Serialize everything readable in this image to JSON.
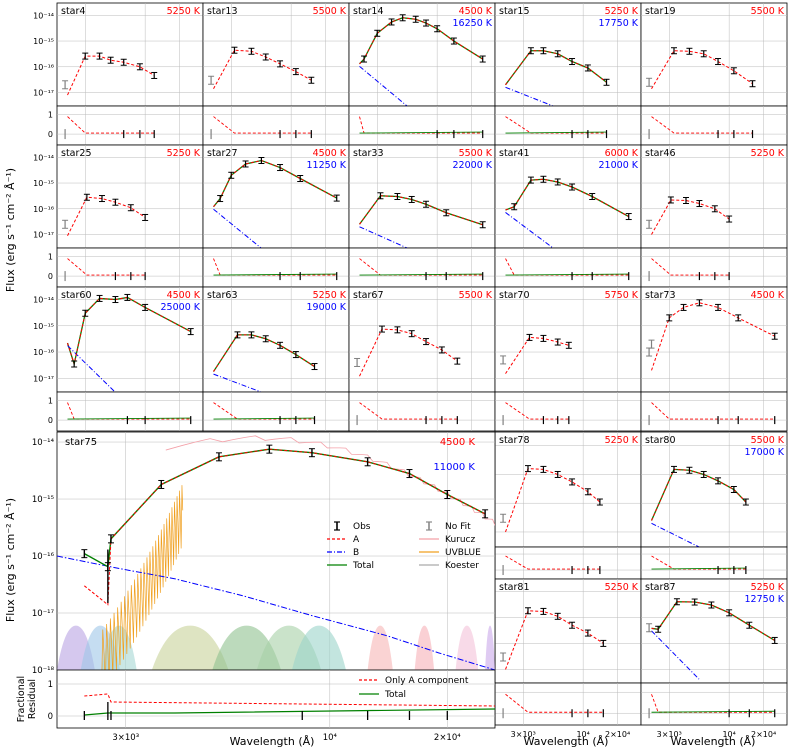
{
  "figure": {
    "ylabel_small": "Flux (erg s⁻¹ cm⁻² Å⁻¹)",
    "ylabel_big": "Flux (erg s⁻¹ cm⁻² Å⁻¹)",
    "ylabel_resid": "Fractional\nResidual",
    "xlabel": "Wavelength (Å)",
    "colors": {
      "A": "#ff0000",
      "B": "#0000ff",
      "Total": "#008000",
      "Obs": "#000000",
      "NoFit": "#808080"
    }
  },
  "legend_main": [
    {
      "label": "Obs",
      "style": "errbar"
    },
    {
      "label": "A",
      "style": "dashed-red"
    },
    {
      "label": "B",
      "style": "dashdot-blue"
    },
    {
      "label": "Total",
      "style": "solid-green"
    },
    {
      "label": "No Fit",
      "style": "errbar-gray"
    },
    {
      "label": "Kurucz",
      "style": "line-pink"
    },
    {
      "label": "UVBLUE",
      "style": "line-orange"
    },
    {
      "label": "Koester",
      "style": "line-gray"
    }
  ],
  "legend_resid": [
    {
      "label": "Only A component",
      "style": "dashed-red"
    },
    {
      "label": "Total",
      "style": "solid-green"
    }
  ],
  "chart_data": [
    {
      "type": "line",
      "star": "star4",
      "tempA": "5250 K",
      "tempB": "",
      "shape": [
        [
          2100,
          8e-18
        ],
        [
          3000,
          2.6e-16
        ],
        [
          4000,
          2.6e-16
        ],
        [
          5000,
          1.8e-16
        ],
        [
          6500,
          1.5e-16
        ],
        [
          9000,
          1e-16
        ],
        [
          12000,
          4.6e-17
        ]
      ],
      "nofit": [
        [
          2000,
          2e-17
        ]
      ]
    },
    {
      "type": "line",
      "star": "star13",
      "tempA": "5500 K",
      "tempB": "",
      "shape": [
        [
          2100,
          1.4e-17
        ],
        [
          3200,
          4.4e-16
        ],
        [
          4500,
          4e-16
        ],
        [
          6000,
          2.4e-16
        ],
        [
          8000,
          1.3e-16
        ],
        [
          11000,
          6.5e-17
        ],
        [
          15000,
          3e-17
        ]
      ],
      "nofit": [
        [
          2000,
          3e-17
        ]
      ]
    },
    {
      "type": "line",
      "star": "star14",
      "tempA": "4500 K",
      "tempB": "16250 K",
      "shape": [
        [
          2100,
          1.3e-16
        ],
        [
          2300,
          2e-16
        ],
        [
          3000,
          2e-15
        ],
        [
          4000,
          5.5e-15
        ],
        [
          5000,
          8e-15
        ],
        [
          6500,
          7e-15
        ],
        [
          8000,
          5e-15
        ],
        [
          10000,
          3e-15
        ],
        [
          14000,
          1e-15
        ],
        [
          25000,
          2e-16
        ]
      ],
      "nofit": []
    },
    {
      "type": "line",
      "star": "star15",
      "tempA": "5250 K",
      "tempB": "17750 K",
      "shape": [
        [
          2100,
          2e-17
        ],
        [
          3500,
          4.2e-16
        ],
        [
          4500,
          4.2e-16
        ],
        [
          6000,
          3.2e-16
        ],
        [
          8000,
          1.6e-16
        ],
        [
          11000,
          9e-17
        ],
        [
          16000,
          2.5e-17
        ]
      ],
      "nofit": []
    },
    {
      "type": "line",
      "star": "star19",
      "tempA": "5500 K",
      "tempB": "",
      "shape": [
        [
          2100,
          1.4e-17
        ],
        [
          3300,
          4.2e-16
        ],
        [
          4500,
          4e-16
        ],
        [
          6000,
          3.2e-16
        ],
        [
          8000,
          1.6e-16
        ],
        [
          11000,
          7e-17
        ],
        [
          16000,
          2.2e-17
        ]
      ],
      "nofit": [
        [
          2000,
          2.5e-17
        ]
      ]
    },
    {
      "type": "line",
      "star": "star25",
      "tempA": "5250 K",
      "tempB": "",
      "shape": [
        [
          2100,
          9e-18
        ],
        [
          3100,
          2.8e-16
        ],
        [
          4200,
          2.5e-16
        ],
        [
          5500,
          1.8e-16
        ],
        [
          7500,
          1.1e-16
        ],
        [
          10000,
          4.6e-17
        ]
      ],
      "nofit": [
        [
          2000,
          2.5e-17
        ]
      ]
    },
    {
      "type": "line",
      "star": "star27",
      "tempA": "4500 K",
      "tempB": "11250 K",
      "shape": [
        [
          2100,
          1.2e-16
        ],
        [
          2400,
          2.5e-16
        ],
        [
          3000,
          2e-15
        ],
        [
          4000,
          5.5e-15
        ],
        [
          5500,
          7.5e-15
        ],
        [
          8000,
          4e-15
        ],
        [
          12000,
          1.5e-15
        ],
        [
          25000,
          2.6e-16
        ]
      ],
      "nofit": []
    },
    {
      "type": "line",
      "star": "star33",
      "tempA": "5500 K",
      "tempB": "22000 K",
      "shape": [
        [
          2100,
          2.5e-17
        ],
        [
          3200,
          3.2e-16
        ],
        [
          4500,
          3e-16
        ],
        [
          6000,
          2.3e-16
        ],
        [
          8000,
          1.5e-16
        ],
        [
          12000,
          7e-17
        ],
        [
          25000,
          2.4e-17
        ]
      ],
      "nofit": []
    },
    {
      "type": "line",
      "star": "star41",
      "tempA": "6000 K",
      "tempB": "21000 K",
      "shape": [
        [
          2100,
          9e-17
        ],
        [
          2500,
          1.2e-16
        ],
        [
          3500,
          1.3e-15
        ],
        [
          4500,
          1.4e-15
        ],
        [
          6000,
          1.1e-15
        ],
        [
          8000,
          7e-16
        ],
        [
          12000,
          3e-16
        ],
        [
          25000,
          5e-17
        ]
      ],
      "nofit": []
    },
    {
      "type": "line",
      "star": "star46",
      "tempA": "5250 K",
      "tempB": "",
      "shape": [
        [
          2100,
          1e-17
        ],
        [
          3100,
          2.2e-16
        ],
        [
          4200,
          2.1e-16
        ],
        [
          5500,
          1.6e-16
        ],
        [
          7500,
          1e-16
        ],
        [
          10000,
          4e-17
        ]
      ],
      "nofit": [
        [
          2000,
          2.5e-17
        ]
      ]
    },
    {
      "type": "line",
      "star": "star60",
      "tempA": "4500 K",
      "tempB": "25000 K",
      "shape": [
        [
          2100,
          2.2e-16
        ],
        [
          2400,
          3.5e-17
        ],
        [
          3000,
          3e-15
        ],
        [
          4000,
          1.1e-14
        ],
        [
          5500,
          1e-14
        ],
        [
          7000,
          1.2e-14
        ],
        [
          10000,
          5e-15
        ],
        [
          25000,
          6e-16
        ]
      ],
      "nofit": []
    },
    {
      "type": "line",
      "star": "star63",
      "tempA": "5250 K",
      "tempB": "19000 K",
      "shape": [
        [
          2100,
          1.8e-17
        ],
        [
          3400,
          4.5e-16
        ],
        [
          4500,
          4.5e-16
        ],
        [
          6000,
          3.2e-16
        ],
        [
          8000,
          1.8e-16
        ],
        [
          11000,
          8e-17
        ],
        [
          16000,
          2.8e-17
        ]
      ],
      "nofit": []
    },
    {
      "type": "line",
      "star": "star67",
      "tempA": "5500 K",
      "tempB": "",
      "shape": [
        [
          2100,
          1.2e-17
        ],
        [
          3300,
          7.5e-16
        ],
        [
          4500,
          7e-16
        ],
        [
          6000,
          5e-16
        ],
        [
          8000,
          2.5e-16
        ],
        [
          11000,
          1.2e-16
        ],
        [
          15000,
          4.5e-17
        ]
      ],
      "nofit": [
        [
          2000,
          4e-17
        ]
      ]
    },
    {
      "type": "line",
      "star": "star70",
      "tempA": "5750 K",
      "tempB": "",
      "shape": [
        [
          2100,
          1.5e-17
        ],
        [
          3400,
          3.6e-16
        ],
        [
          4500,
          3.3e-16
        ],
        [
          6000,
          2.4e-16
        ],
        [
          7500,
          1.8e-16
        ]
      ],
      "nofit": [
        [
          2000,
          5e-17
        ]
      ]
    },
    {
      "type": "line",
      "star": "star73",
      "tempA": "4500 K",
      "tempB": "",
      "shape": [
        [
          2100,
          2e-17
        ],
        [
          3000,
          2e-15
        ],
        [
          4000,
          5e-15
        ],
        [
          5500,
          7.5e-15
        ],
        [
          8000,
          5e-15
        ],
        [
          12000,
          2e-15
        ],
        [
          25000,
          4e-16
        ]
      ],
      "nofit": [
        [
          2000,
          1e-16
        ],
        [
          2100,
          2e-16
        ]
      ]
    },
    {
      "type": "line",
      "star": "star75",
      "tempA": "4500 K",
      "tempB": "11000 K",
      "shape": [
        [
          2350,
          1.1e-16
        ],
        [
          2700,
          6.5e-17
        ],
        [
          2750,
          2e-16
        ],
        [
          3700,
          1.8e-15
        ],
        [
          5200,
          5.5e-15
        ],
        [
          7000,
          7.5e-15
        ],
        [
          9000,
          6.5e-15
        ],
        [
          12500,
          4.5e-15
        ],
        [
          16000,
          2.8e-15
        ],
        [
          20000,
          1.2e-15
        ],
        [
          25000,
          5.5e-16
        ]
      ],
      "nofit": []
    },
    {
      "type": "line",
      "star": "star78",
      "tempA": "5250 K",
      "tempB": "",
      "shape": [
        [
          2100,
          1e-17
        ],
        [
          3300,
          1.6e-15
        ],
        [
          4500,
          1.5e-15
        ],
        [
          6000,
          1e-15
        ],
        [
          8000,
          5.5e-16
        ],
        [
          11000,
          2.5e-16
        ],
        [
          14000,
          1.1e-16
        ]
      ],
      "nofit": [
        [
          2000,
          3e-17
        ]
      ]
    },
    {
      "type": "line",
      "star": "star80",
      "tempA": "5500 K",
      "tempB": "17000 K",
      "shape": [
        [
          2100,
          2.5e-17
        ],
        [
          3300,
          1.5e-15
        ],
        [
          4500,
          1.4e-15
        ],
        [
          6000,
          1e-15
        ],
        [
          8000,
          6e-16
        ],
        [
          11000,
          3e-16
        ],
        [
          14000,
          1.1e-16
        ]
      ],
      "nofit": []
    },
    {
      "type": "line",
      "star": "star81",
      "tempA": "5250 K",
      "tempB": "",
      "shape": [
        [
          2100,
          1e-17
        ],
        [
          3300,
          1.8e-15
        ],
        [
          4500,
          1.7e-15
        ],
        [
          6000,
          1.1e-15
        ],
        [
          8000,
          5e-16
        ],
        [
          11000,
          2.5e-16
        ],
        [
          15000,
          1e-16
        ]
      ],
      "nofit": [
        [
          2000,
          3e-17
        ]
      ]
    },
    {
      "type": "line",
      "star": "star87",
      "tempA": "5250 K",
      "tempB": "12750 K",
      "shape": [
        [
          2100,
          3.8e-16
        ],
        [
          2400,
          3.5e-16
        ],
        [
          3500,
          4e-15
        ],
        [
          5000,
          3.9e-15
        ],
        [
          7000,
          3e-15
        ],
        [
          10000,
          1.5e-15
        ],
        [
          15000,
          5e-16
        ],
        [
          25000,
          1.3e-16
        ]
      ],
      "nofit": [
        [
          2000,
          4e-16
        ]
      ]
    }
  ],
  "axes": {
    "yticks_small": [
      "10⁻¹⁴",
      "10⁻¹⁵",
      "10⁻¹⁶",
      "10⁻¹⁷"
    ],
    "yticks_big": [
      "10⁻¹⁴",
      "10⁻¹⁵",
      "10⁻¹⁶",
      "10⁻¹⁷",
      "10⁻¹⁸"
    ],
    "resid_ticks": [
      "1",
      "0"
    ],
    "xticks_big": [
      "3×10³",
      "10⁴",
      "2×10⁴"
    ],
    "xticks_small": [
      "3×10³",
      "10⁴",
      "2×10⁴"
    ]
  }
}
